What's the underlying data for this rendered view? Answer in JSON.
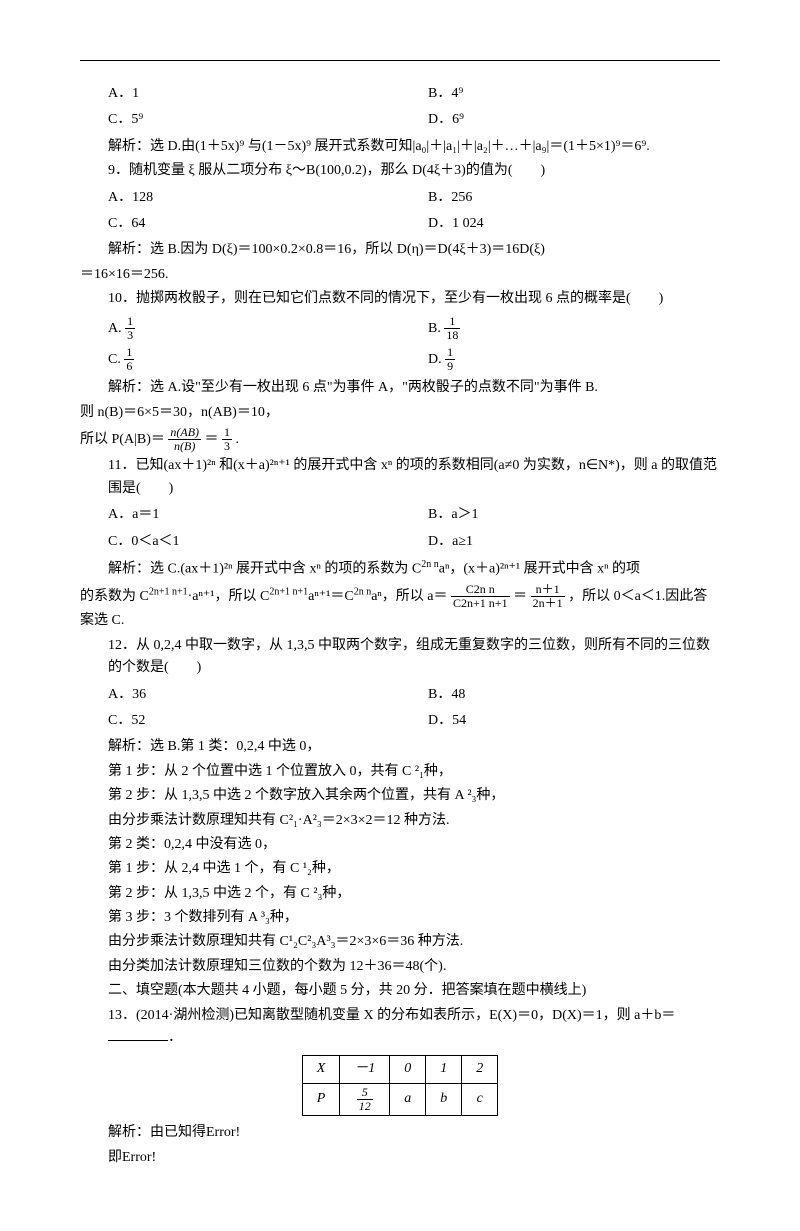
{
  "q8": {
    "optA": "A．1",
    "optB": "B．4⁹",
    "optC": "C．5⁹",
    "optD": "D．6⁹",
    "analysis": "解析：选 D.由(1＋5x)⁹ 与(1－5x)⁹ 展开式系数可知|a₀|＋|a₁|＋|a₂|＋…＋|a₉|＝(1＋5×1)⁹＝6⁹."
  },
  "q9": {
    "stem": "9．随机变量 ξ 服从二项分布 ξ～B(100,0.2)，那么 D(4ξ＋3)的值为(　　)",
    "optA": "A．128",
    "optB": "B．256",
    "optC": "C．64",
    "optD": "D．1 024",
    "analysis1": "解析：选 B.因为 D(ξ)＝100×0.2×0.8＝16，所以 D(η)＝D(4ξ＋3)＝16D(ξ)",
    "analysis2": "＝16×16＝256."
  },
  "q10": {
    "stem": "10．抛掷两枚骰子，则在已知它们点数不同的情况下，至少有一枚出现 6 点的概率是(　　)",
    "optA_pre": "A.",
    "optA_num": "1",
    "optA_den": "3",
    "optB_pre": "B.",
    "optB_num": "1",
    "optB_den": "18",
    "optC_pre": "C.",
    "optC_num": "1",
    "optC_den": "6",
    "optD_pre": "D.",
    "optD_num": "1",
    "optD_den": "9",
    "analysis1": "解析：选 A.设\"至少有一枚出现 6 点\"为事件 A，\"两枚骰子的点数不同\"为事件 B.",
    "analysis2": "则 n(B)＝6×5＝30，n(AB)＝10，",
    "analysis3_pre": "所以 P(A|B)＝",
    "analysis3_num1": "n(AB)",
    "analysis3_den1": "n(B)",
    "analysis3_mid": "＝",
    "analysis3_num2": "1",
    "analysis3_den2": "3",
    "analysis3_suf": "."
  },
  "q11": {
    "stem": "11．已知(ax＋1)²ⁿ 和(x＋a)²ⁿ⁺¹ 的展开式中含 xⁿ 的项的系数相同(a≠0 为实数，n∈N*)，则 a 的取值范围是(　　)",
    "optA": "A．a＝1",
    "optB": "B．a＞1",
    "optC": "C．0＜a＜1",
    "optD": "D．a≥1",
    "analysis_pre": "解析：选 C.(ax＋1)²ⁿ 展开式中含 xⁿ 的项的系数为 C",
    "analysis_c1": "2n n",
    "analysis_mid1": "aⁿ，(x＋a)²ⁿ⁺¹ 展开式中含 xⁿ 的项",
    "analysis_line2a": "的系数为 C",
    "analysis_c2": "2n+1 n+1",
    "analysis_mid2": "·aⁿ⁺¹，所以 C",
    "analysis_mid3": "aⁿ⁺¹＝C",
    "analysis_mid4": "aⁿ，所以 a＝",
    "analysis_fnum": "C2n n",
    "analysis_fden": "C2n+1 n+1",
    "analysis_mid5": "＝",
    "analysis_fnum2": "n＋1",
    "analysis_fden2": "2n＋1",
    "analysis_suf": "，所以 0＜a＜1.因此答案选 C."
  },
  "q12": {
    "stem": "12．从 0,2,4 中取一数字，从 1,3,5 中取两个数字，组成无重复数字的三位数，则所有不同的三位数的个数是(　　)",
    "optA": "A．36",
    "optB": "B．48",
    "optC": "C．52",
    "optD": "D．54",
    "a1": "解析：选 B.第 1 类：0,2,4 中选 0，",
    "a2": "第 1 步：从 2 个位置中选 1 个位置放入 0，共有 C ²₁种，",
    "a3": "第 2 步：从 1,3,5 中选 2 个数字放入其余两个位置，共有 A ²₃种，",
    "a4": "由分步乘法计数原理知共有 C²₁·A²₃＝2×3×2＝12 种方法.",
    "a5": "第 2 类：0,2,4 中没有选 0，",
    "a6": "第 1 步：从 2,4 中选 1 个，有 C ¹₂种，",
    "a7": "第 2 步：从 1,3,5 中选 2 个，有 C ²₃种，",
    "a8": "第 3 步：3 个数排列有 A ³₃种，",
    "a9": "由分步乘法计数原理知共有 C¹₂C²₃A³₃＝2×3×6＝36 种方法.",
    "a10": "由分类加法计数原理知三位数的个数为 12＋36＝48(个)."
  },
  "sec2": {
    "title": "二、填空题(本大题共 4 小题，每小题 5 分，共 20 分．把答案填在题中横线上)"
  },
  "q13": {
    "stem_pre": "13．(2014·湖州检测)已知离散型随机变量 X 的分布如表所示，E(X)＝0，D(X)＝1，则 a＋b＝",
    "stem_suf": "．",
    "table": {
      "r1": [
        "X",
        "－1",
        "0",
        "1",
        "2"
      ],
      "r2_h": "P",
      "r2_fnum": "5",
      "r2_fden": "12",
      "r2_c2": "a",
      "r2_c3": "b",
      "r2_c4": "c"
    },
    "a1": "解析：由已知得Error!",
    "a2": "即Error!"
  }
}
